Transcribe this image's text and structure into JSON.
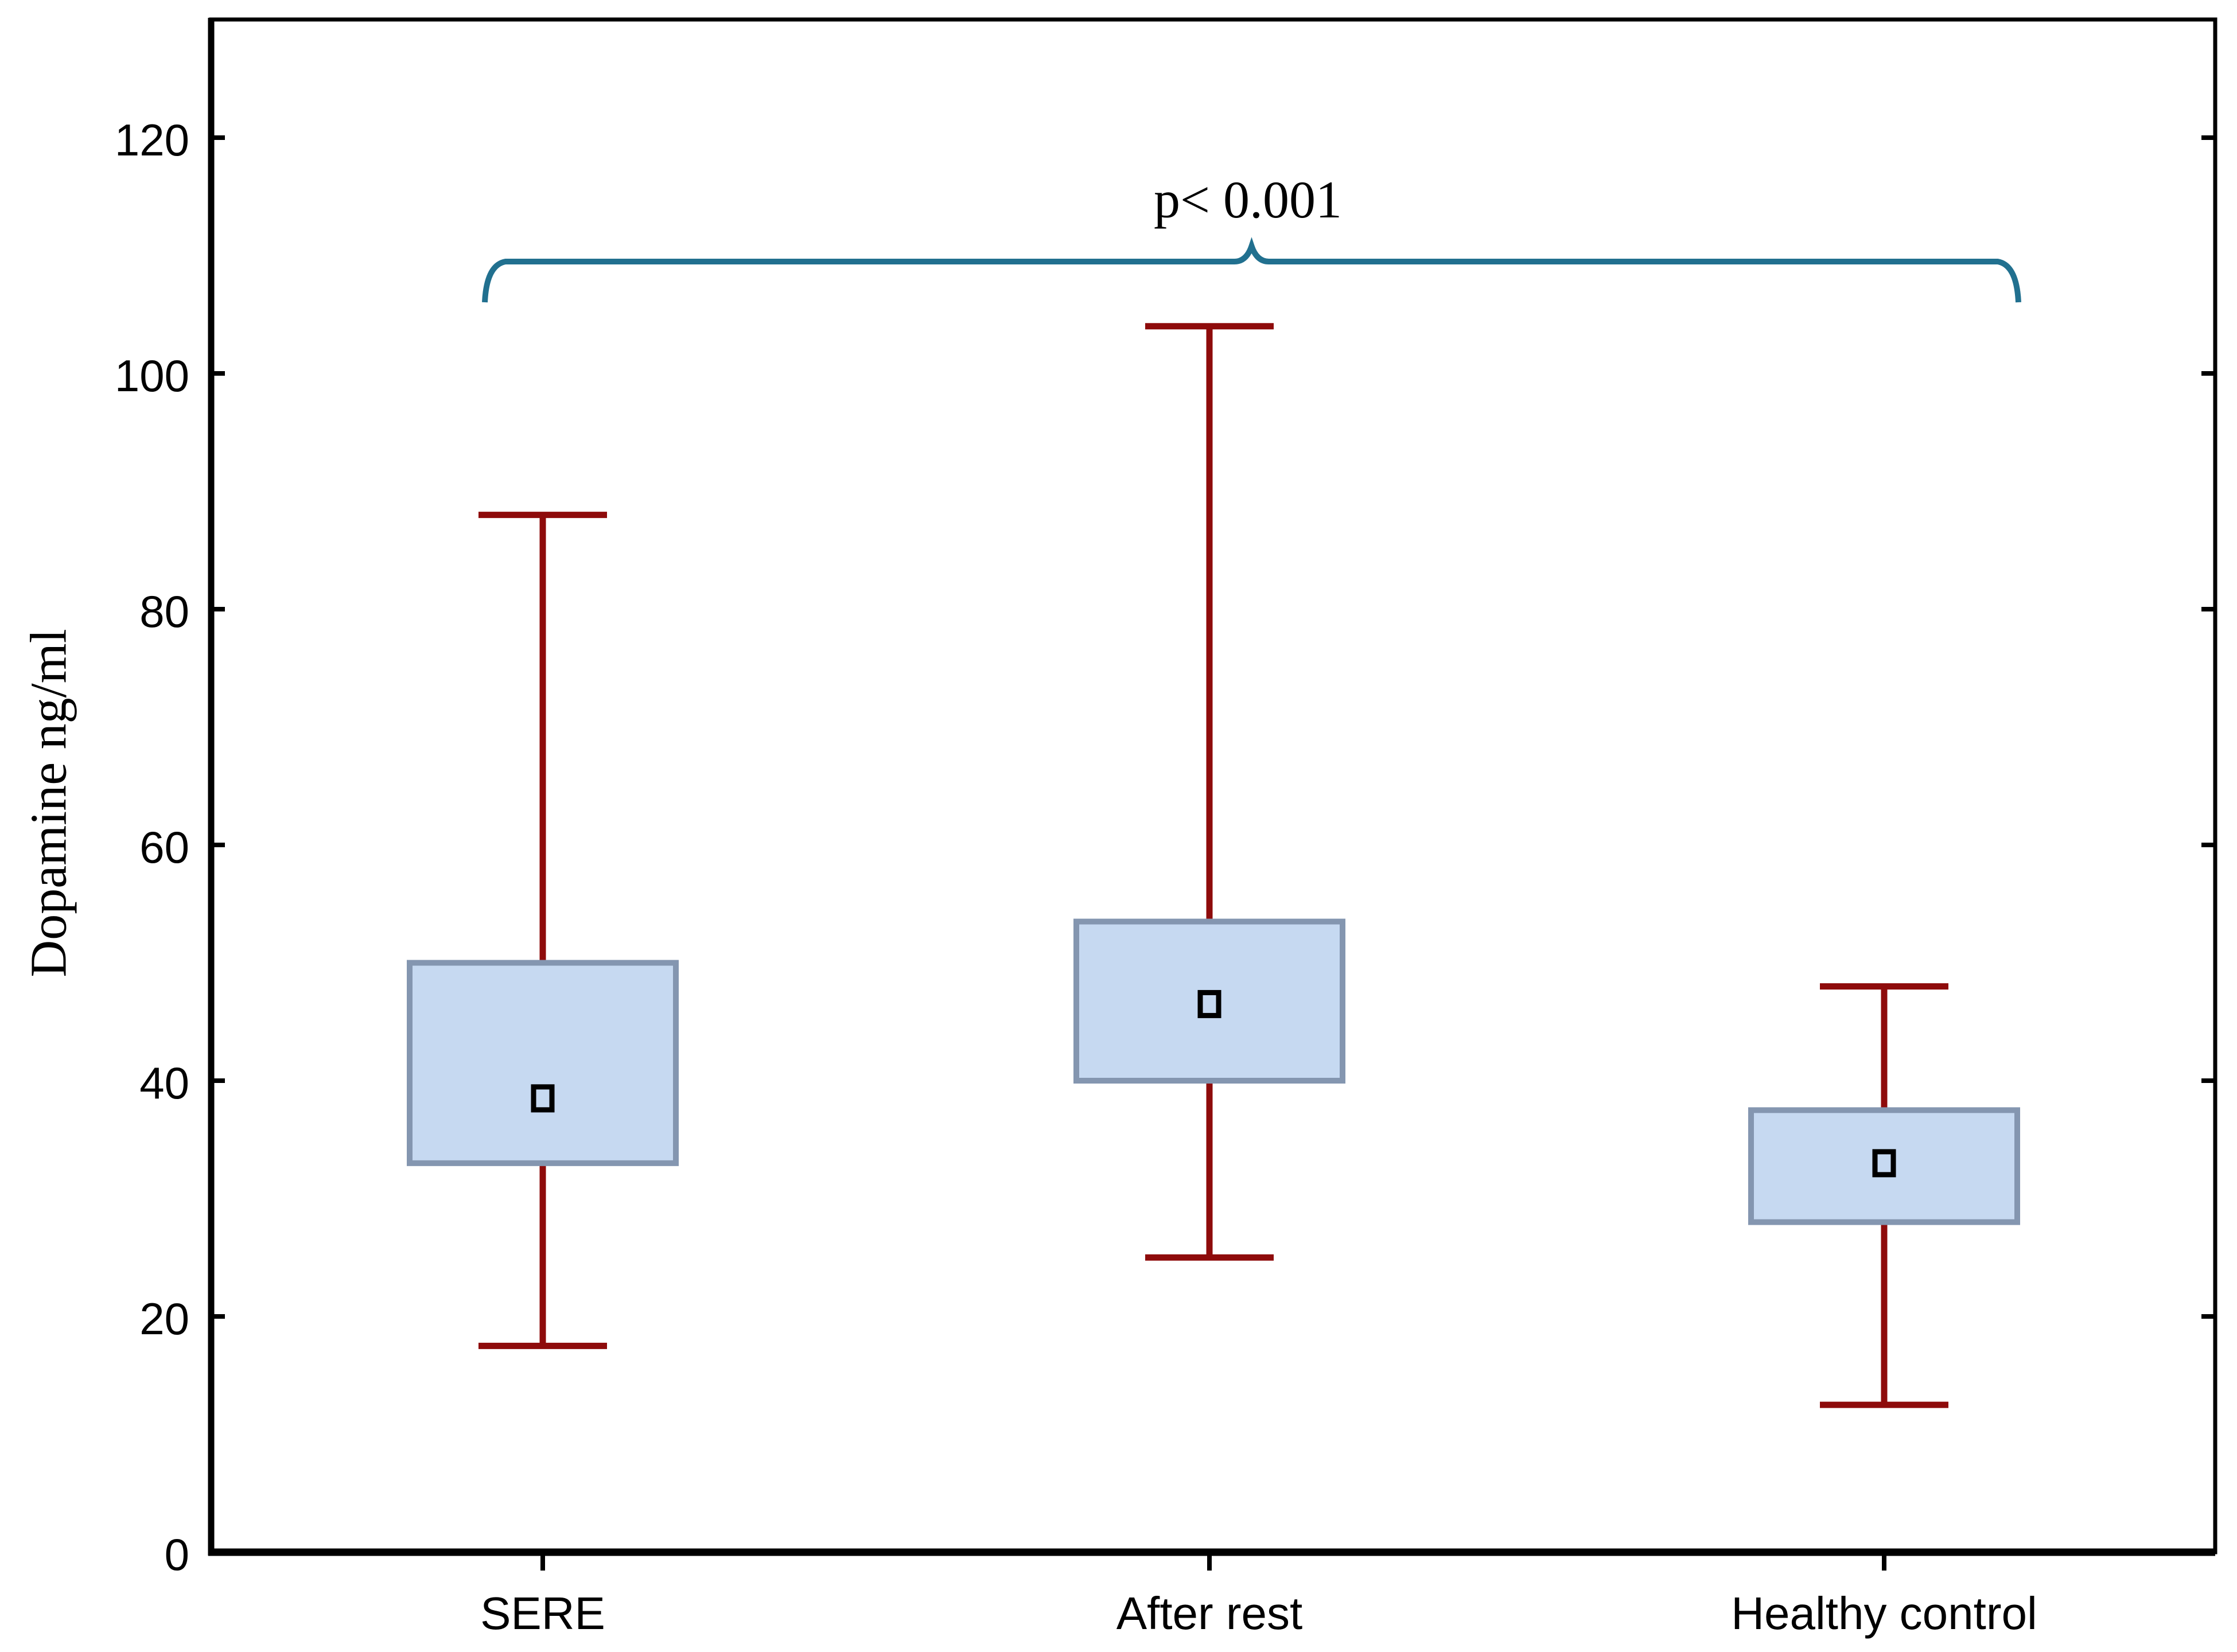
{
  "figure": {
    "background": "#FFFFFF"
  },
  "chart_data": {
    "type": "box",
    "title": "",
    "xlabel": "",
    "ylabel": "Dopamine ng/ml",
    "ylim": [
      0,
      130
    ],
    "y_ticks": [
      0,
      20,
      40,
      60,
      80,
      100,
      120
    ],
    "grid": false,
    "legend": null,
    "marker": "open-square-mean",
    "categories": [
      "SERE",
      "After rest",
      "Healthy control"
    ],
    "series": [
      {
        "name": "SERE",
        "whisker_low": 17.5,
        "q1": 33,
        "mean": 38.5,
        "q3": 50,
        "whisker_high": 88
      },
      {
        "name": "After rest",
        "whisker_low": 25,
        "q1": 40,
        "mean": 46.5,
        "q3": 53.5,
        "whisker_high": 104
      },
      {
        "name": "Healthy control",
        "whisker_low": 12.5,
        "q1": 28,
        "mean": 33,
        "q3": 37.5,
        "whisker_high": 48
      }
    ],
    "annotation": {
      "text": "p< 0.001",
      "from_category": "SERE",
      "to_category": "Healthy control",
      "shape": "curly-brace-up"
    },
    "colors": {
      "box_fill": "#C6D9F1",
      "box_border": "#8496B0",
      "whisker": "#8E0B0B",
      "brace": "#21708F",
      "axis": "#000000",
      "text": "#000000",
      "background": "#FFFFFF"
    }
  }
}
